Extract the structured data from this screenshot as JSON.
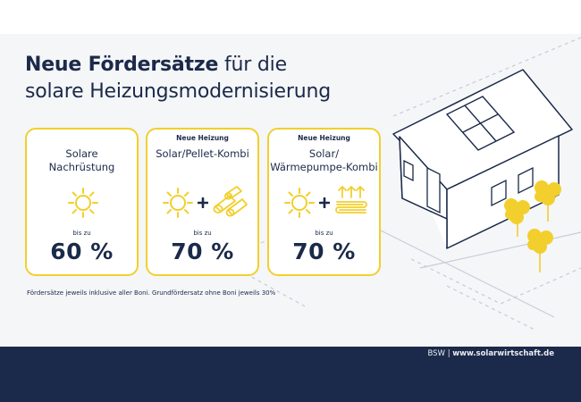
{
  "headline": {
    "bold": "Neue Fördersätze",
    "rest_line1": "für die",
    "line2": "solare Heizungsmodernisierung"
  },
  "cards": [
    {
      "tag": "",
      "title_line1": "Solare",
      "title_line2": "Nachrüstung",
      "bis_zu": "bis zu",
      "percent": "60 %",
      "icons": [
        "sun-icon"
      ]
    },
    {
      "tag": "Neue Heizung",
      "title_line1": "Solar/Pellet-Kombi",
      "title_line2": "",
      "bis_zu": "bis zu",
      "percent": "70 %",
      "icons": [
        "sun-icon",
        "plus-icon",
        "pellets-icon"
      ]
    },
    {
      "tag": "Neue Heizung",
      "title_line1": "Solar/",
      "title_line2": "Wärmepumpe-Kombi",
      "bis_zu": "bis zu",
      "percent": "70 %",
      "icons": [
        "sun-icon",
        "plus-icon",
        "heat-pump-icon"
      ]
    }
  ],
  "note": "Fördersätze jeweils inklusive aller Boni. Grundfördersatz ohne Boni jeweils 30%",
  "footer": {
    "org": "BSW",
    "separator": "|",
    "url": "www.solarwirtschaft.de"
  },
  "colors": {
    "navy": "#1b2a4a",
    "yellow": "#f2cf2c",
    "background": "#f5f6f8"
  }
}
